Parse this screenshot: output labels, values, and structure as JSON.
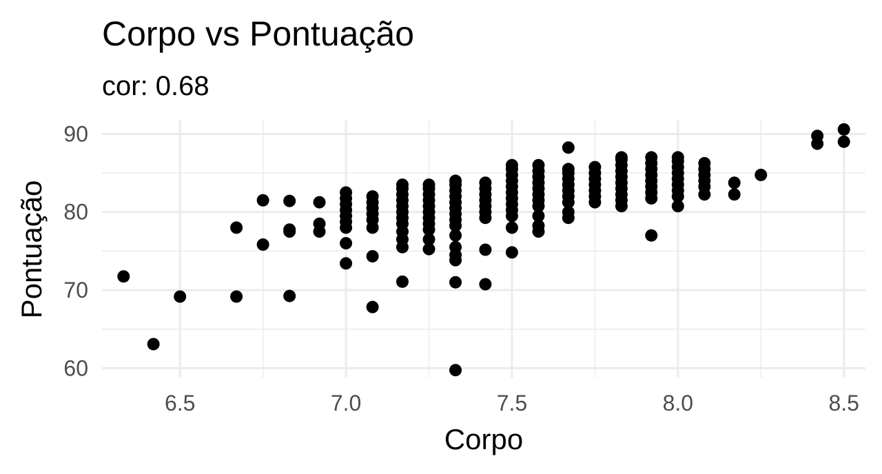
{
  "chart_data": {
    "type": "scatter",
    "title": "Corpo vs Pontuação",
    "subtitle": "cor: 0.68",
    "xlabel": "Corpo",
    "ylabel": "Pontuação",
    "xlim": [
      6.265,
      8.565
    ],
    "ylim": [
      58.8,
      91.8
    ],
    "x_ticks": [
      "6.5",
      "7.0",
      "7.5",
      "8.0",
      "8.5"
    ],
    "y_ticks": [
      "60",
      "70",
      "80",
      "90"
    ],
    "grid": true,
    "point_color": "#000000",
    "points": [
      [
        6.33,
        71.75
      ],
      [
        6.42,
        63.08
      ],
      [
        6.5,
        69.17
      ],
      [
        6.67,
        69.17
      ],
      [
        6.67,
        78.0
      ],
      [
        6.75,
        75.83
      ],
      [
        6.75,
        81.5
      ],
      [
        6.83,
        69.25
      ],
      [
        6.83,
        77.5
      ],
      [
        6.83,
        77.75
      ],
      [
        6.83,
        81.42
      ],
      [
        6.92,
        77.5
      ],
      [
        6.92,
        78.5
      ],
      [
        6.92,
        81.25
      ],
      [
        7.0,
        73.42
      ],
      [
        7.0,
        76.0
      ],
      [
        7.0,
        78.0
      ],
      [
        7.0,
        78.75
      ],
      [
        7.0,
        79.5
      ],
      [
        7.0,
        80.25
      ],
      [
        7.0,
        81.0
      ],
      [
        7.0,
        81.75
      ],
      [
        7.0,
        82.5
      ],
      [
        7.08,
        67.83
      ],
      [
        7.08,
        74.33
      ],
      [
        7.08,
        78.0
      ],
      [
        7.08,
        79.0
      ],
      [
        7.08,
        79.75
      ],
      [
        7.08,
        80.5
      ],
      [
        7.08,
        81.25
      ],
      [
        7.08,
        82.0
      ],
      [
        7.17,
        71.08
      ],
      [
        7.17,
        75.5
      ],
      [
        7.17,
        76.5
      ],
      [
        7.17,
        77.5
      ],
      [
        7.17,
        78.5
      ],
      [
        7.17,
        79.25
      ],
      [
        7.17,
        80.0
      ],
      [
        7.17,
        80.75
      ],
      [
        7.17,
        81.5
      ],
      [
        7.17,
        82.25
      ],
      [
        7.17,
        83.0
      ],
      [
        7.17,
        83.5
      ],
      [
        7.25,
        75.25
      ],
      [
        7.25,
        76.5
      ],
      [
        7.25,
        77.75
      ],
      [
        7.25,
        78.5
      ],
      [
        7.25,
        79.25
      ],
      [
        7.25,
        80.0
      ],
      [
        7.25,
        80.75
      ],
      [
        7.25,
        81.5
      ],
      [
        7.25,
        82.25
      ],
      [
        7.25,
        83.0
      ],
      [
        7.25,
        83.5
      ],
      [
        7.33,
        59.75
      ],
      [
        7.33,
        71.0
      ],
      [
        7.33,
        73.83
      ],
      [
        7.33,
        74.5
      ],
      [
        7.33,
        75.5
      ],
      [
        7.33,
        77.0
      ],
      [
        7.33,
        78.25
      ],
      [
        7.33,
        79.0
      ],
      [
        7.33,
        79.75
      ],
      [
        7.33,
        80.5
      ],
      [
        7.33,
        81.25
      ],
      [
        7.33,
        82.0
      ],
      [
        7.33,
        82.75
      ],
      [
        7.33,
        83.5
      ],
      [
        7.33,
        84.0
      ],
      [
        7.42,
        70.75
      ],
      [
        7.42,
        75.17
      ],
      [
        7.42,
        79.25
      ],
      [
        7.42,
        80.0
      ],
      [
        7.42,
        80.75
      ],
      [
        7.42,
        81.5
      ],
      [
        7.42,
        82.25
      ],
      [
        7.42,
        83.0
      ],
      [
        7.42,
        83.75
      ],
      [
        7.5,
        74.83
      ],
      [
        7.5,
        78.0
      ],
      [
        7.5,
        79.5
      ],
      [
        7.5,
        80.25
      ],
      [
        7.5,
        81.0
      ],
      [
        7.5,
        81.75
      ],
      [
        7.5,
        82.5
      ],
      [
        7.5,
        83.25
      ],
      [
        7.5,
        84.0
      ],
      [
        7.5,
        84.75
      ],
      [
        7.5,
        85.5
      ],
      [
        7.5,
        86.0
      ],
      [
        7.58,
        77.5
      ],
      [
        7.58,
        78.25
      ],
      [
        7.58,
        79.5
      ],
      [
        7.58,
        80.75
      ],
      [
        7.58,
        81.5
      ],
      [
        7.58,
        82.25
      ],
      [
        7.58,
        83.0
      ],
      [
        7.58,
        83.75
      ],
      [
        7.58,
        84.5
      ],
      [
        7.58,
        85.25
      ],
      [
        7.58,
        86.0
      ],
      [
        7.67,
        79.25
      ],
      [
        7.67,
        80.0
      ],
      [
        7.67,
        81.25
      ],
      [
        7.67,
        82.0
      ],
      [
        7.67,
        82.75
      ],
      [
        7.67,
        83.5
      ],
      [
        7.67,
        84.25
      ],
      [
        7.67,
        85.0
      ],
      [
        7.67,
        85.5
      ],
      [
        7.67,
        88.25
      ],
      [
        7.75,
        81.25
      ],
      [
        7.75,
        82.0
      ],
      [
        7.75,
        82.75
      ],
      [
        7.75,
        83.5
      ],
      [
        7.75,
        84.25
      ],
      [
        7.75,
        85.0
      ],
      [
        7.75,
        85.75
      ],
      [
        7.83,
        80.75
      ],
      [
        7.83,
        81.5
      ],
      [
        7.83,
        82.25
      ],
      [
        7.83,
        83.0
      ],
      [
        7.83,
        83.75
      ],
      [
        7.83,
        84.5
      ],
      [
        7.83,
        85.25
      ],
      [
        7.83,
        86.0
      ],
      [
        7.83,
        86.75
      ],
      [
        7.83,
        87.0
      ],
      [
        7.92,
        77.0
      ],
      [
        7.92,
        81.75
      ],
      [
        7.92,
        82.5
      ],
      [
        7.92,
        83.25
      ],
      [
        7.92,
        84.0
      ],
      [
        7.92,
        84.75
      ],
      [
        7.92,
        85.5
      ],
      [
        7.92,
        86.25
      ],
      [
        7.92,
        87.0
      ],
      [
        8.0,
        80.75
      ],
      [
        8.0,
        82.0
      ],
      [
        8.0,
        82.75
      ],
      [
        8.0,
        83.5
      ],
      [
        8.0,
        84.25
      ],
      [
        8.0,
        85.0
      ],
      [
        8.0,
        85.75
      ],
      [
        8.0,
        86.5
      ],
      [
        8.0,
        87.0
      ],
      [
        8.08,
        82.25
      ],
      [
        8.08,
        83.25
      ],
      [
        8.08,
        84.0
      ],
      [
        8.08,
        84.75
      ],
      [
        8.08,
        85.5
      ],
      [
        8.08,
        86.25
      ],
      [
        8.17,
        82.25
      ],
      [
        8.17,
        83.75
      ],
      [
        8.25,
        84.75
      ],
      [
        8.42,
        88.75
      ],
      [
        8.42,
        89.75
      ],
      [
        8.5,
        89.0
      ],
      [
        8.5,
        90.58
      ]
    ]
  }
}
